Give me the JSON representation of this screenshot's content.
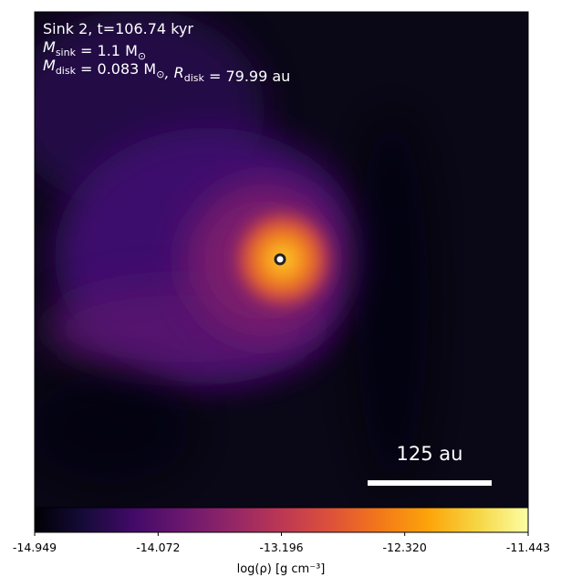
{
  "chart_data": {
    "type": "image",
    "annotation_lines": [
      [
        "Sink 2, t=106.74 kyr"
      ],
      [
        "M",
        {
          "text": "sink",
          "sub": true
        },
        " = 1.1 M",
        {
          "text": "⊙",
          "sub": true
        }
      ],
      [
        "M",
        {
          "text": "disk",
          "sub": true
        },
        " = 0.083 M",
        {
          "text": "⊙",
          "sub": true
        },
        ", R",
        {
          "text": "disk",
          "sub": true
        },
        " = 79.99 au"
      ]
    ],
    "scale_bar_label": "125 au",
    "colorbar": {
      "label": "log(ρ) [g cm⁻³]",
      "lim": [
        -14.949,
        -11.443
      ],
      "ticks": [
        -14.949,
        -14.072,
        -13.196,
        {
          "value": -12.32,
          "label": "-12.320"
        },
        -11.443
      ]
    }
  }
}
